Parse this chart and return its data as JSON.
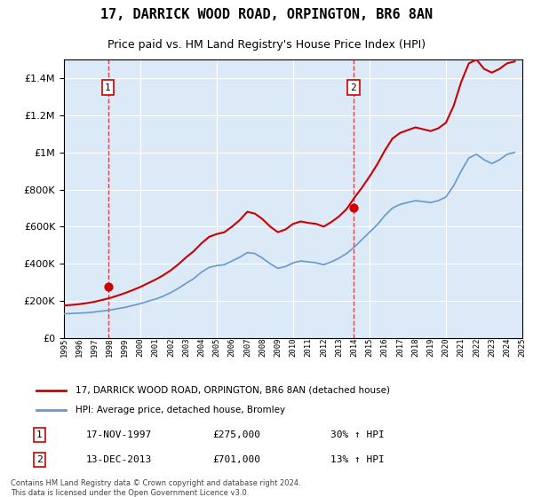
{
  "title": "17, DARRICK WOOD ROAD, ORPINGTON, BR6 8AN",
  "subtitle": "Price paid vs. HM Land Registry's House Price Index (HPI)",
  "hpi_label": "HPI: Average price, detached house, Bromley",
  "price_label": "17, DARRICK WOOD ROAD, ORPINGTON, BR6 8AN (detached house)",
  "sale1_date": "17-NOV-1997",
  "sale1_price": 275000,
  "sale1_hpi": "30% ↑ HPI",
  "sale2_date": "13-DEC-2013",
  "sale2_price": 701000,
  "sale2_hpi": "13% ↑ HPI",
  "footer": "Contains HM Land Registry data © Crown copyright and database right 2024.\nThis data is licensed under the Open Government Licence v3.0.",
  "ylim": [
    0,
    1500000
  ],
  "background_color": "#dce9f7",
  "plot_bg": "#dce9f7",
  "red_color": "#cc0000",
  "blue_color": "#6699cc",
  "hpi_years": [
    1995,
    1995.5,
    1996,
    1996.5,
    1997,
    1997.5,
    1998,
    1998.5,
    1999,
    1999.5,
    2000,
    2000.5,
    2001,
    2001.5,
    2002,
    2002.5,
    2003,
    2003.5,
    2004,
    2004.5,
    2005,
    2005.5,
    2006,
    2006.5,
    2007,
    2007.5,
    2008,
    2008.5,
    2009,
    2009.5,
    2010,
    2010.5,
    2011,
    2011.5,
    2012,
    2012.5,
    2013,
    2013.5,
    2014,
    2014.5,
    2015,
    2015.5,
    2016,
    2016.5,
    2017,
    2017.5,
    2018,
    2018.5,
    2019,
    2019.5,
    2020,
    2020.5,
    2021,
    2021.5,
    2022,
    2022.5,
    2023,
    2023.5,
    2024,
    2024.5
  ],
  "hpi_values": [
    130000,
    132000,
    134000,
    136000,
    140000,
    145000,
    150000,
    158000,
    165000,
    175000,
    185000,
    198000,
    210000,
    225000,
    245000,
    268000,
    295000,
    320000,
    355000,
    380000,
    390000,
    395000,
    415000,
    435000,
    460000,
    455000,
    430000,
    400000,
    375000,
    385000,
    405000,
    415000,
    410000,
    405000,
    395000,
    410000,
    430000,
    455000,
    490000,
    530000,
    570000,
    610000,
    660000,
    700000,
    720000,
    730000,
    740000,
    735000,
    730000,
    740000,
    760000,
    820000,
    900000,
    970000,
    990000,
    960000,
    940000,
    960000,
    990000,
    1000000
  ],
  "price_years": [
    1995,
    1995.5,
    1996,
    1996.5,
    1997,
    1997.5,
    1998,
    1998.5,
    1999,
    1999.5,
    2000,
    2000.5,
    2001,
    2001.5,
    2002,
    2002.5,
    2003,
    2003.5,
    2004,
    2004.5,
    2005,
    2005.5,
    2006,
    2006.5,
    2007,
    2007.5,
    2008,
    2008.5,
    2009,
    2009.5,
    2010,
    2010.5,
    2011,
    2011.5,
    2012,
    2012.5,
    2013,
    2013.5,
    2014,
    2014.5,
    2015,
    2015.5,
    2016,
    2016.5,
    2017,
    2017.5,
    2018,
    2018.5,
    2019,
    2019.5,
    2020,
    2020.5,
    2021,
    2021.5,
    2022,
    2022.5,
    2023,
    2023.5,
    2024,
    2024.5
  ],
  "price_values": [
    175000,
    178000,
    182000,
    188000,
    195000,
    205000,
    215000,
    228000,
    242000,
    258000,
    275000,
    295000,
    315000,
    338000,
    365000,
    398000,
    435000,
    468000,
    510000,
    545000,
    560000,
    570000,
    600000,
    635000,
    680000,
    670000,
    640000,
    600000,
    570000,
    585000,
    615000,
    628000,
    620000,
    615000,
    600000,
    625000,
    655000,
    695000,
    755000,
    810000,
    870000,
    935000,
    1010000,
    1075000,
    1105000,
    1120000,
    1135000,
    1125000,
    1115000,
    1130000,
    1160000,
    1250000,
    1380000,
    1480000,
    1500000,
    1450000,
    1430000,
    1450000,
    1480000,
    1490000
  ],
  "sale1_year": 1997.88,
  "sale2_year": 2013.95,
  "xtick_years": [
    1995,
    1996,
    1997,
    1998,
    1999,
    2000,
    2001,
    2002,
    2003,
    2004,
    2005,
    2006,
    2007,
    2008,
    2009,
    2010,
    2011,
    2012,
    2013,
    2014,
    2015,
    2016,
    2017,
    2018,
    2019,
    2020,
    2021,
    2022,
    2023,
    2024,
    2025
  ]
}
